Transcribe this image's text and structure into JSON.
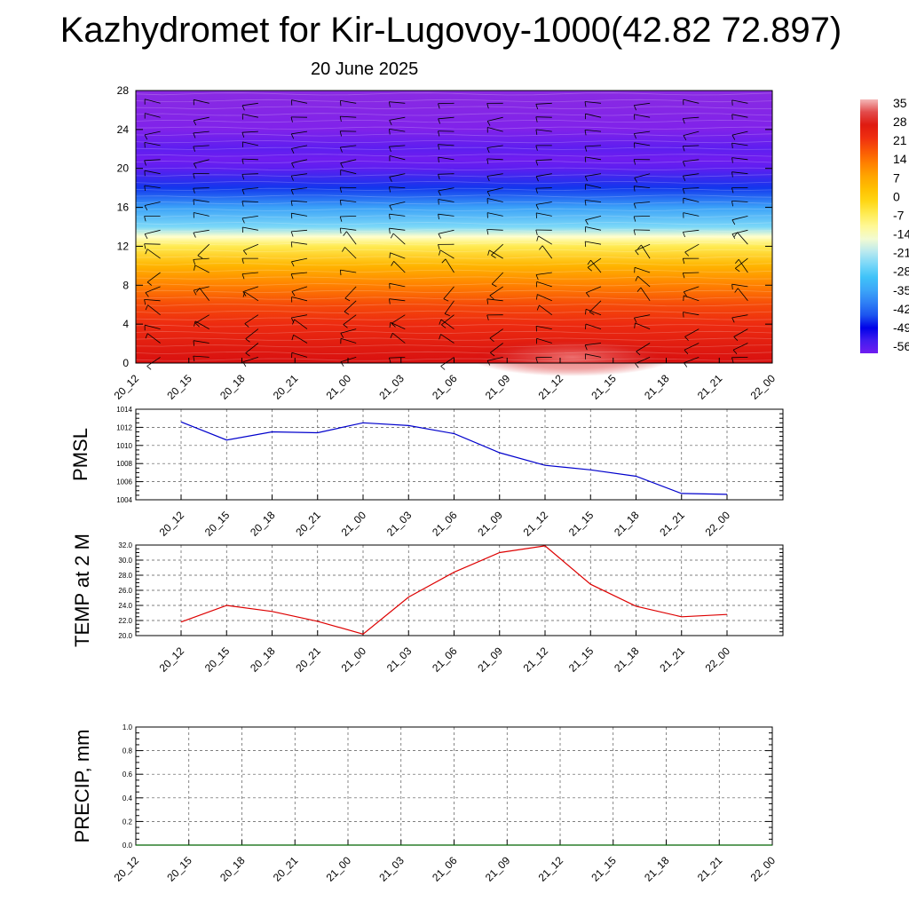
{
  "title": "Kazhydromet for Kir-Lugovoy-1000(42.82 72.897)",
  "subtitle": "20 June 2025",
  "colors": {
    "pmsl_line": "#0000cc",
    "temp_line": "#dd0000",
    "precip_line": "#006400",
    "grid": "#555555",
    "wind_barb": "#000000"
  },
  "chart_data": [
    {
      "type": "heatmap",
      "description_key": "temperature-height-section",
      "x_labels": [
        "20_12",
        "20_15",
        "20_18",
        "20_21",
        "21_00",
        "21_03",
        "21_06",
        "21_09",
        "21_12",
        "21_15",
        "21_18",
        "21_21",
        "22_00"
      ],
      "y_ticks": [
        0,
        4,
        8,
        12,
        16,
        20,
        24,
        28
      ],
      "ylim": [
        0,
        28
      ],
      "colorbar": {
        "labels": [
          "35",
          "28",
          "21",
          "14",
          "7",
          "0",
          "-7",
          "-14",
          "-21",
          "-28",
          "-35",
          "-42",
          "-49",
          "-56"
        ],
        "range": [
          -56,
          35
        ]
      },
      "temperature_profile_by_height": [
        {
          "h": 0,
          "t": 28
        },
        {
          "h": 2,
          "t": 25
        },
        {
          "h": 4,
          "t": 22
        },
        {
          "h": 6,
          "t": 18
        },
        {
          "h": 8,
          "t": 12
        },
        {
          "h": 10,
          "t": 5
        },
        {
          "h": 12,
          "t": -6
        },
        {
          "h": 13,
          "t": -14
        },
        {
          "h": 14,
          "t": -24
        },
        {
          "h": 16,
          "t": -34
        },
        {
          "h": 18,
          "t": -44
        },
        {
          "h": 20,
          "t": -54
        },
        {
          "h": 21,
          "t": -56
        },
        {
          "h": 22,
          "t": -54
        },
        {
          "h": 24,
          "t": -59
        },
        {
          "h": 28,
          "t": -62
        }
      ],
      "wind_barbs_shown": true
    },
    {
      "type": "line",
      "ylabel": "PMSL",
      "x_labels": [
        "20_12",
        "20_15",
        "20_18",
        "20_21",
        "21_00",
        "21_03",
        "21_06",
        "21_09",
        "21_12",
        "21_15",
        "21_18",
        "21_21",
        "22_00"
      ],
      "y_ticks": [
        "1004",
        "1006",
        "1008",
        "1010",
        "1012",
        "1014"
      ],
      "ylim": [
        1004,
        1014
      ],
      "values": [
        1012.6,
        1010.6,
        1011.5,
        1011.4,
        1012.5,
        1012.2,
        1011.3,
        1009.2,
        1007.8,
        1007.3,
        1006.6,
        1004.7,
        1004.6
      ],
      "grid": true
    },
    {
      "type": "line",
      "ylabel": "TEMP at 2 M",
      "x_labels": [
        "20_12",
        "20_15",
        "20_18",
        "20_21",
        "21_00",
        "21_03",
        "21_06",
        "21_09",
        "21_12",
        "21_15",
        "21_18",
        "21_21",
        "22_00"
      ],
      "y_ticks": [
        "20.0",
        "22.0",
        "24.0",
        "26.0",
        "28.0",
        "30.0",
        "32.0"
      ],
      "ylim": [
        20,
        32
      ],
      "values": [
        21.8,
        24.0,
        23.2,
        21.9,
        20.2,
        25.1,
        28.4,
        31.0,
        31.9,
        26.8,
        23.9,
        22.5,
        22.8
      ],
      "grid": true
    },
    {
      "type": "line",
      "ylabel": "PRECIP, mm",
      "x_labels": [
        "20_12",
        "20_15",
        "20_18",
        "20_21",
        "21_00",
        "21_03",
        "21_06",
        "21_09",
        "21_12",
        "21_15",
        "21_18",
        "21_21",
        "22_00"
      ],
      "y_ticks": [
        "0.0",
        "0.2",
        "0.4",
        "0.6",
        "0.8",
        "1.0"
      ],
      "ylim": [
        0,
        1
      ],
      "values": [
        0,
        0,
        0,
        0,
        0,
        0,
        0,
        0,
        0,
        0,
        0,
        0,
        0
      ],
      "grid": true
    }
  ]
}
